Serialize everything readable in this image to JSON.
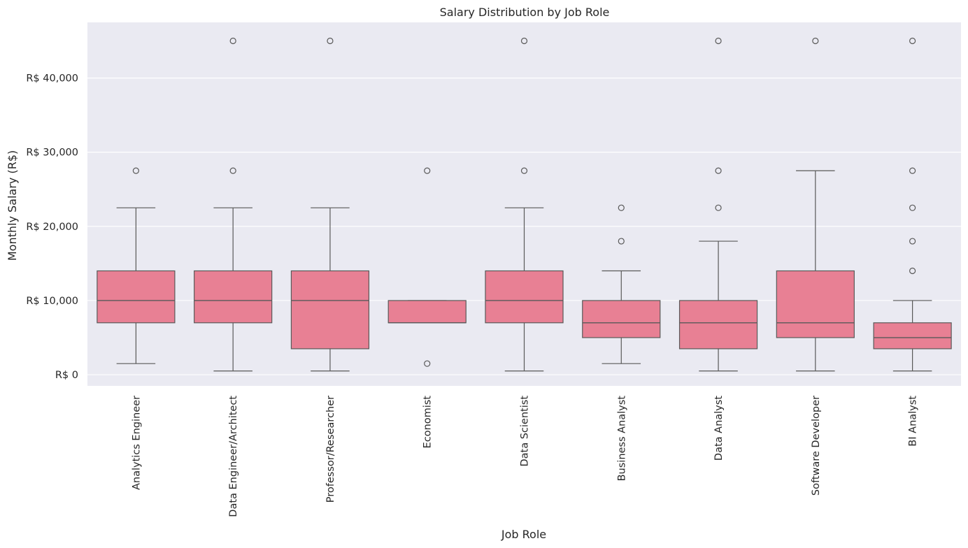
{
  "chart_data": {
    "type": "box",
    "title": "Salary Distribution by Job Role",
    "xlabel": "Job Role",
    "ylabel": "Monthly Salary (R$)",
    "ylim": [
      -1500,
      47500
    ],
    "yticks": [
      0,
      10000,
      20000,
      30000,
      40000
    ],
    "ytick_labels": [
      "R$ 0",
      "R$ 10,000",
      "R$ 20,000",
      "R$ 30,000",
      "R$ 40,000"
    ],
    "grid": true,
    "box_color": "#e88094",
    "edge_color": "#595959",
    "background_color": "#eaeaf2",
    "categories": [
      "Analytics Engineer",
      "Data Engineer/Architect",
      "Professor/Researcher",
      "Economist",
      "Data Scientist",
      "Business Analyst",
      "Data Analyst",
      "Software Developer",
      "BI Analyst"
    ],
    "boxes": [
      {
        "whislo": 1500,
        "q1": 7000,
        "med": 10000,
        "q3": 14000,
        "whishi": 22500,
        "fliers": [
          27500
        ]
      },
      {
        "whislo": 500,
        "q1": 7000,
        "med": 10000,
        "q3": 14000,
        "whishi": 22500,
        "fliers": [
          27500,
          45000
        ]
      },
      {
        "whislo": 500,
        "q1": 3500,
        "med": 10000,
        "q3": 14000,
        "whishi": 22500,
        "fliers": [
          45000
        ]
      },
      {
        "whislo": 7000,
        "q1": 7000,
        "med": 7000,
        "q3": 10000,
        "whishi": 10000,
        "fliers": [
          1500,
          27500
        ]
      },
      {
        "whislo": 500,
        "q1": 7000,
        "med": 10000,
        "q3": 14000,
        "whishi": 22500,
        "fliers": [
          27500,
          45000
        ]
      },
      {
        "whislo": 1500,
        "q1": 5000,
        "med": 7000,
        "q3": 10000,
        "whishi": 14000,
        "fliers": [
          18000,
          22500
        ]
      },
      {
        "whislo": 500,
        "q1": 3500,
        "med": 7000,
        "q3": 10000,
        "whishi": 18000,
        "fliers": [
          22500,
          27500,
          45000
        ]
      },
      {
        "whislo": 500,
        "q1": 5000,
        "med": 7000,
        "q3": 14000,
        "whishi": 27500,
        "fliers": [
          45000
        ]
      },
      {
        "whislo": 500,
        "q1": 3500,
        "med": 5000,
        "q3": 7000,
        "whishi": 10000,
        "fliers": [
          14000,
          18000,
          22500,
          27500,
          45000
        ]
      }
    ]
  }
}
